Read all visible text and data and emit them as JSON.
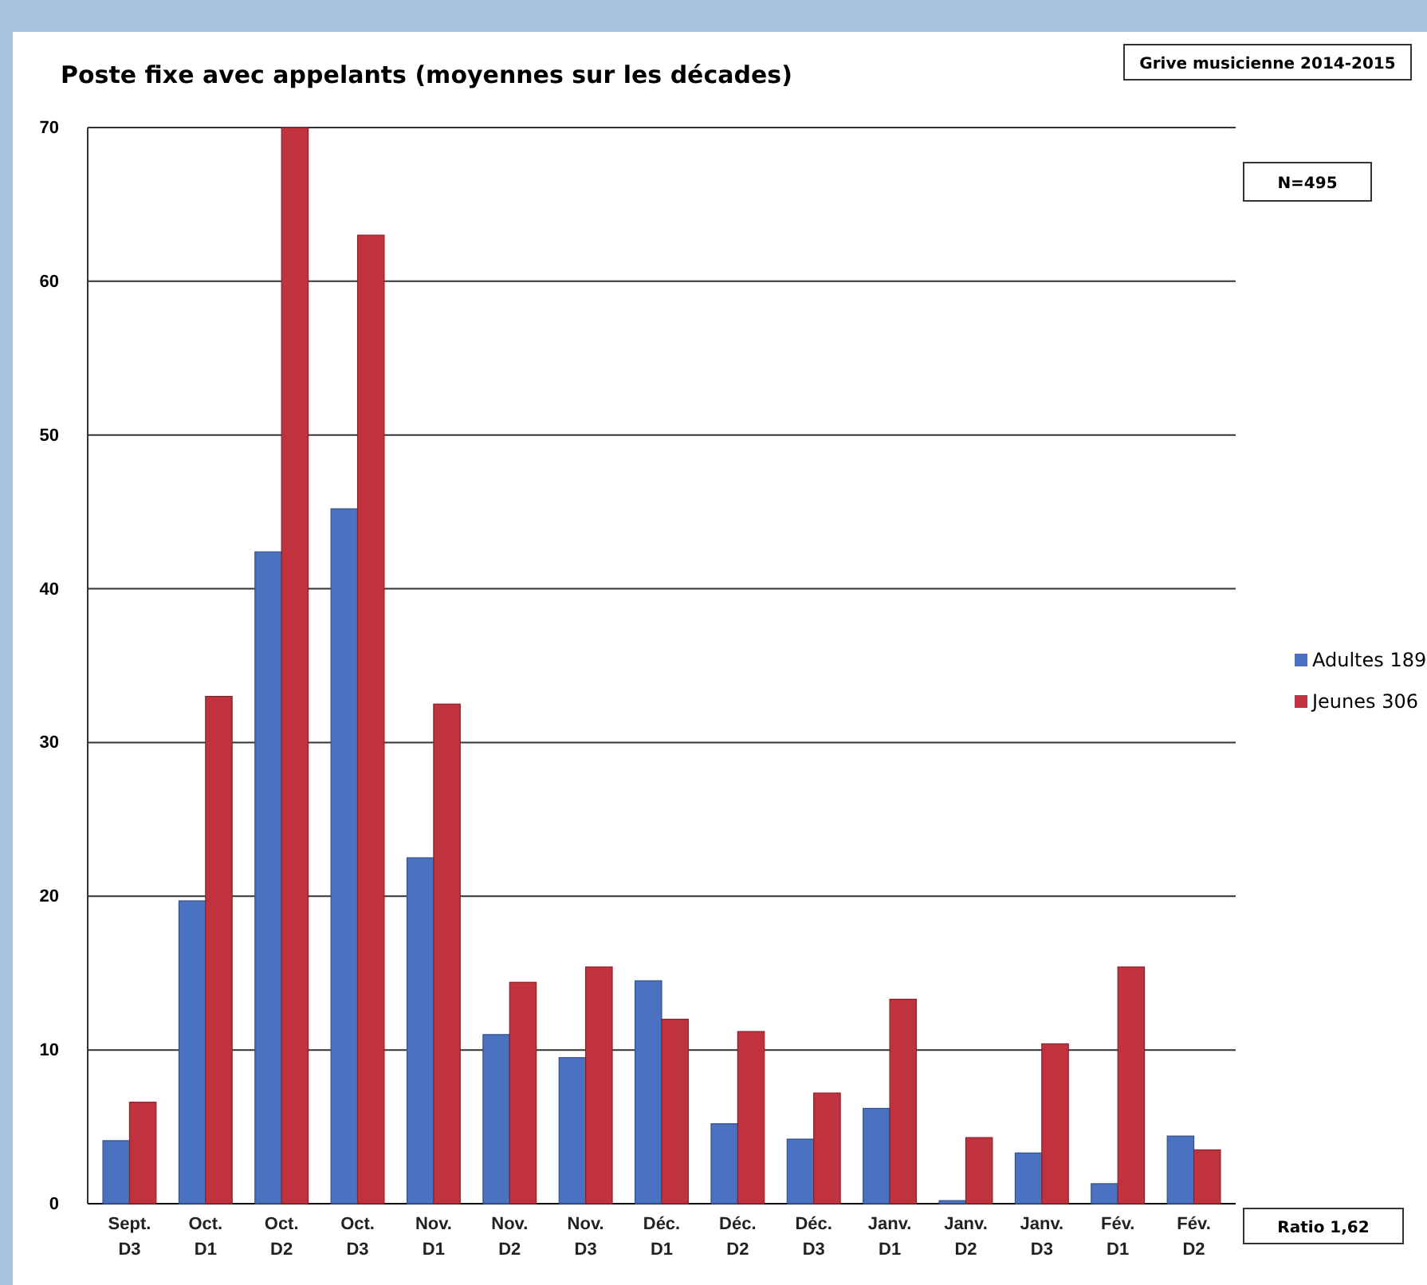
{
  "chart_data": {
    "type": "bar",
    "title": "Poste fixe avec appelants (moyennes sur les décades)",
    "categories": [
      "Sept.\nD3",
      "Oct.\nD1",
      "Oct.\nD2",
      "Oct.\nD3",
      "Nov.\nD1",
      "Nov.\nD2",
      "Nov.\nD3",
      "Déc.\nD1",
      "Déc.\nD2",
      "Déc.\nD3",
      "Janv.\nD1",
      "Janv.\nD2",
      "Janv.\nD3",
      "Fév.\nD1",
      "Fév.\nD2"
    ],
    "series": [
      {
        "name": "Adultes 189",
        "color": "#4a72c0",
        "values": [
          4.1,
          19.7,
          42.4,
          45.2,
          22.5,
          11,
          9.5,
          14.5,
          5.2,
          4.2,
          6.2,
          0.2,
          3.3,
          1.3,
          4.4
        ]
      },
      {
        "name": "Jeunes 306",
        "color": "#c0323e",
        "values": [
          6.6,
          33,
          70,
          63,
          32.5,
          14.4,
          15.4,
          12,
          11.2,
          7.2,
          13.3,
          4.3,
          10.4,
          15.4,
          3.5
        ]
      }
    ],
    "ylim": [
      0,
      70
    ],
    "yticks": [
      0,
      10,
      20,
      30,
      40,
      50,
      60,
      70
    ],
    "grid": "y",
    "legend": "right",
    "annotations": [
      "Grive musicienne 2014-2015",
      "N=495",
      "Ratio 1,62"
    ]
  }
}
